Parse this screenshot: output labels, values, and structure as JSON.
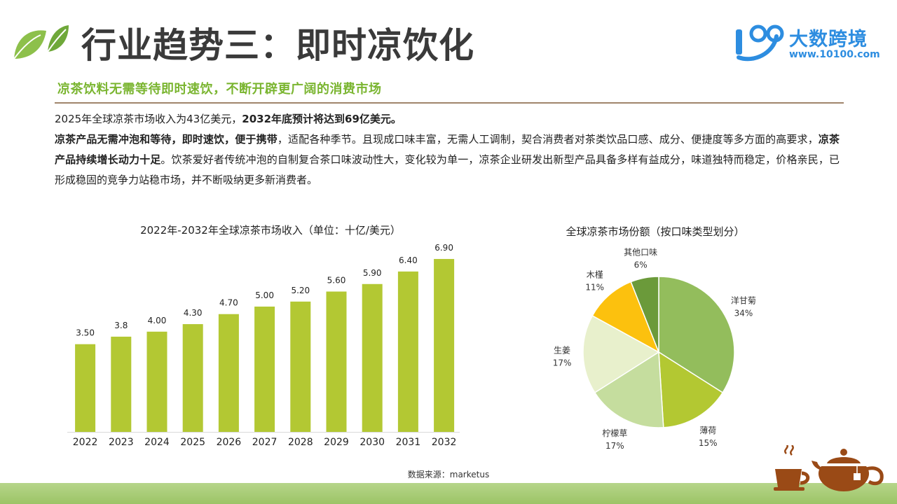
{
  "header": {
    "title": "行业趋势三：即时凉饮化",
    "subtitle": "凉茶饮料无需等待即时速饮，不断开辟更广阔的消费市场"
  },
  "logo": {
    "mark_text": "100",
    "name": "大数跨境",
    "url": "www.10100.com"
  },
  "body": {
    "p1_a": "2025年全球凉茶市场收入为43亿美元，",
    "p1_b": "2032年底预计将达到69亿美元。",
    "p2_a": "凉茶产品无需冲泡和等待，即时速饮，便于携带",
    "p2_b": "，适配各种季节。且现成口味丰富，无需人工调制，契合消费者对茶类饮品口感、成分、便捷度等多方面的高要求，",
    "p2_c": "凉茶产品持续增长动力十足",
    "p2_d": "。饮茶爱好者传统冲泡的自制复合茶口味波动性大，变化较为单一，凉茶企业研发出新型产品具备多样有益成分，味道独特而稳定，价格亲民，已形成稳固的竞争力站稳市场，并不断吸纳更多新消费者。"
  },
  "source": "数据来源：marketus",
  "colors": {
    "bar": "#b3c833",
    "title_green": "#7ab530",
    "rule": "#a0856b",
    "pie": [
      "#93bd5c",
      "#b3c832",
      "#c5dd9e",
      "#e8f0cc",
      "#fcc10e",
      "#6b9a3a"
    ]
  },
  "chart_data": [
    {
      "type": "bar",
      "title": "2022年-2032年全球凉茶市场收入（单位：十亿/美元）",
      "categories": [
        "2022",
        "2023",
        "2024",
        "2025",
        "2026",
        "2027",
        "2028",
        "2029",
        "2030",
        "2031",
        "2032"
      ],
      "values": [
        3.5,
        3.8,
        4.0,
        4.3,
        4.7,
        5.0,
        5.2,
        5.6,
        5.9,
        6.4,
        6.9
      ],
      "value_labels": [
        "3.50",
        "3.8",
        "4.00",
        "4.30",
        "4.70",
        "5.00",
        "5.20",
        "5.60",
        "5.90",
        "6.40",
        "6.90"
      ],
      "ylim": [
        0,
        8.1
      ],
      "grid": false
    },
    {
      "type": "pie",
      "title": "全球凉茶市场份额（按口味类型划分）",
      "slices": [
        {
          "label": "洋甘菊",
          "value": 34,
          "pct": "34%"
        },
        {
          "label": "薄荷",
          "value": 15,
          "pct": "15%"
        },
        {
          "label": "柠檬草",
          "value": 17,
          "pct": "17%"
        },
        {
          "label": "生姜",
          "value": 17,
          "pct": "17%"
        },
        {
          "label": "木槿",
          "value": 11,
          "pct": "11%"
        },
        {
          "label": "其他口味",
          "value": 6,
          "pct": "6%"
        }
      ]
    }
  ]
}
